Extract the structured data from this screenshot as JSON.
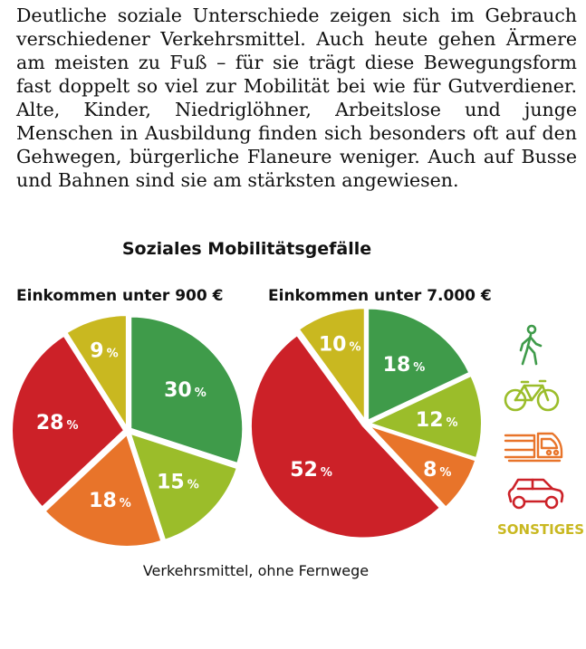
{
  "intro_text": "Deutliche soziale Unterschiede zeigen sich im Gebrauch verschiedener Verkehrsmittel. Auch heute gehen Ärmere am meisten zu Fuß – für sie trägt diese Bewegungsform fast doppelt so viel zur Mobilität bei wie für Gutverdiener. Alte, Kinder, Niedriglöhner, Arbeitslose und junge Menschen in Ausbildung finden sich besonders oft auf den Gehwegen, bürgerliche Flaneure weniger. Auch auf Busse und Bahnen sind sie am stärksten angewiesen.",
  "chart_title": "Soziales Mobilitätsgefälle",
  "caption": "Verkehrsmittel, ohne Fernwege",
  "legend": {
    "items": [
      {
        "icon": "walking-icon",
        "color": "#3f9b4a"
      },
      {
        "icon": "bicycle-icon",
        "color": "#9bbd2a"
      },
      {
        "icon": "train-icon",
        "color": "#e8742a"
      },
      {
        "icon": "car-icon",
        "color": "#cc2128"
      }
    ],
    "sonstiges_label": "SONSTIGES",
    "sonstiges_color": "#c9b820"
  },
  "chart_data": [
    {
      "type": "pie",
      "title": "Einkommen unter 900 €",
      "labels": [
        "Zu Fuß",
        "Fahrrad",
        "ÖPNV",
        "Auto",
        "Sonstiges"
      ],
      "values": [
        30,
        15,
        18,
        28,
        9
      ],
      "unit": "%",
      "colors": [
        "#3f9b4a",
        "#9bbd2a",
        "#e8742a",
        "#cc2128",
        "#c9b820"
      ]
    },
    {
      "type": "pie",
      "title": "Einkommen unter 7.000 €",
      "labels": [
        "Zu Fuß",
        "Fahrrad",
        "ÖPNV",
        "Auto",
        "Sonstiges"
      ],
      "values": [
        18,
        12,
        8,
        52,
        10
      ],
      "unit": "%",
      "colors": [
        "#3f9b4a",
        "#9bbd2a",
        "#e8742a",
        "#cc2128",
        "#c9b820"
      ]
    }
  ]
}
